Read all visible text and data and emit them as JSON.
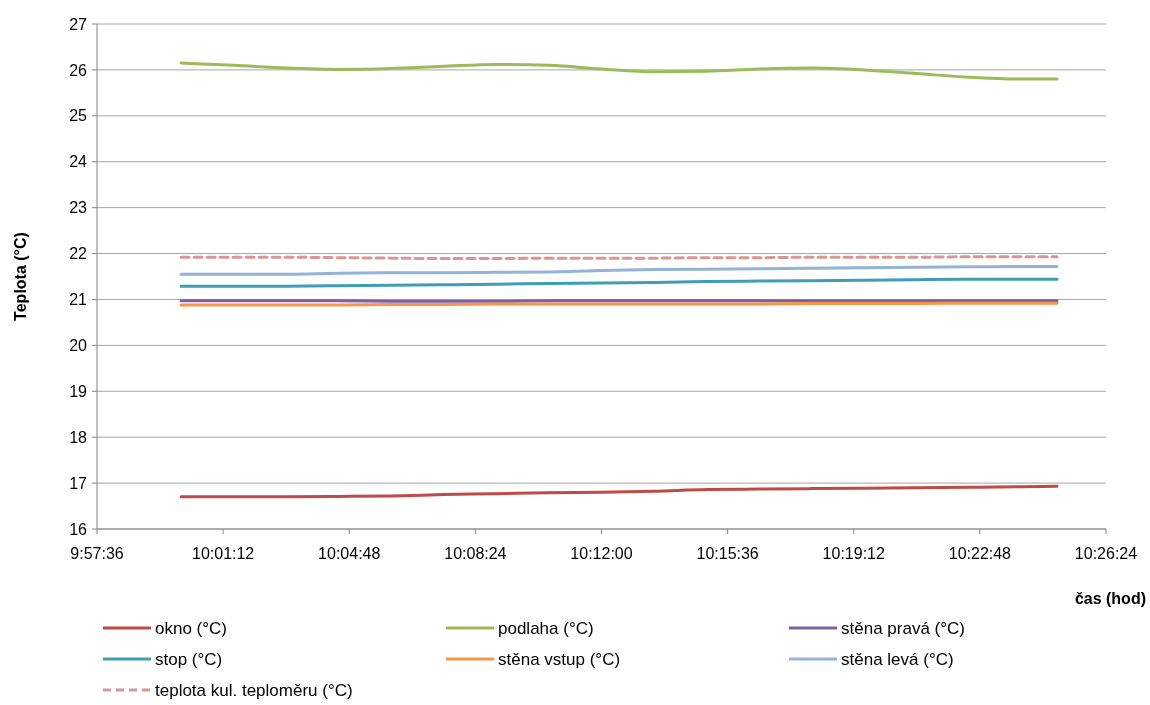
{
  "chart_data": {
    "type": "line",
    "xlabel": "čas (hod)",
    "ylabel": "Teplota (°C)",
    "x": [
      10.0,
      10.025,
      10.05,
      10.075,
      10.1,
      10.125,
      10.15,
      10.175,
      10.2,
      10.225,
      10.25,
      10.275,
      10.3,
      10.325,
      10.35,
      10.375,
      10.4,
      10.4167
    ],
    "xlim": [
      9.96,
      10.44
    ],
    "xticks": [
      {
        "value": 9.96,
        "label": "9:57:36"
      },
      {
        "value": 10.02,
        "label": "10:01:12"
      },
      {
        "value": 10.08,
        "label": "10:04:48"
      },
      {
        "value": 10.14,
        "label": "10:08:24"
      },
      {
        "value": 10.2,
        "label": "10:12:00"
      },
      {
        "value": 10.26,
        "label": "10:15:36"
      },
      {
        "value": 10.32,
        "label": "10:19:12"
      },
      {
        "value": 10.38,
        "label": "10:22:48"
      },
      {
        "value": 10.44,
        "label": "10:26:24"
      }
    ],
    "ylim": [
      16,
      27
    ],
    "yticks": [
      16,
      17,
      18,
      19,
      20,
      21,
      22,
      23,
      24,
      25,
      26,
      27
    ],
    "grid": "y",
    "legend": "bottom",
    "marker": "none",
    "line_style": "solid",
    "series": [
      {
        "name": "okno (°C)",
        "color": "#be4b48",
        "values": [
          16.7,
          16.7,
          16.7,
          16.71,
          16.72,
          16.75,
          16.77,
          16.79,
          16.8,
          16.82,
          16.86,
          16.87,
          16.88,
          16.89,
          16.9,
          16.91,
          16.92,
          16.93
        ]
      },
      {
        "name": "podlaha (°C)",
        "color": "#9bbb59",
        "values": [
          26.15,
          26.1,
          26.04,
          26.01,
          26.03,
          26.08,
          26.12,
          26.1,
          26.02,
          25.96,
          25.97,
          26.02,
          26.04,
          26.0,
          25.92,
          25.84,
          25.8,
          25.8
        ]
      },
      {
        "name": "stěna pravá (°C)",
        "color": "#7e5fa2",
        "values": [
          20.97,
          20.97,
          20.97,
          20.97,
          20.96,
          20.96,
          20.96,
          20.97,
          20.97,
          20.97,
          20.97,
          20.97,
          20.97,
          20.97,
          20.97,
          20.97,
          20.97,
          20.97
        ]
      },
      {
        "name": "stop (°C)",
        "color": "#3f9db6",
        "values": [
          21.29,
          21.29,
          21.29,
          21.3,
          21.31,
          21.32,
          21.33,
          21.35,
          21.36,
          21.37,
          21.39,
          21.4,
          21.41,
          21.42,
          21.43,
          21.44,
          21.44,
          21.44
        ]
      },
      {
        "name": "stěna vstup (°C)",
        "color": "#f79646",
        "values": [
          20.88,
          20.88,
          20.88,
          20.88,
          20.89,
          20.89,
          20.9,
          20.9,
          20.9,
          20.9,
          20.9,
          20.9,
          20.91,
          20.91,
          20.91,
          20.92,
          20.92,
          20.92
        ]
      },
      {
        "name": "stěna  levá (°C)",
        "color": "#95b3d7",
        "values": [
          21.55,
          21.55,
          21.55,
          21.57,
          21.58,
          21.58,
          21.59,
          21.6,
          21.63,
          21.65,
          21.66,
          21.67,
          21.68,
          21.69,
          21.7,
          21.71,
          21.72,
          21.72
        ]
      },
      {
        "name": "teplota kul. teploměru (°C)",
        "color": "#d99694",
        "line_style": "dashed",
        "values": [
          21.92,
          21.92,
          21.92,
          21.91,
          21.9,
          21.89,
          21.89,
          21.9,
          21.9,
          21.9,
          21.91,
          21.91,
          21.92,
          21.92,
          21.92,
          21.93,
          21.93,
          21.93
        ]
      }
    ]
  }
}
